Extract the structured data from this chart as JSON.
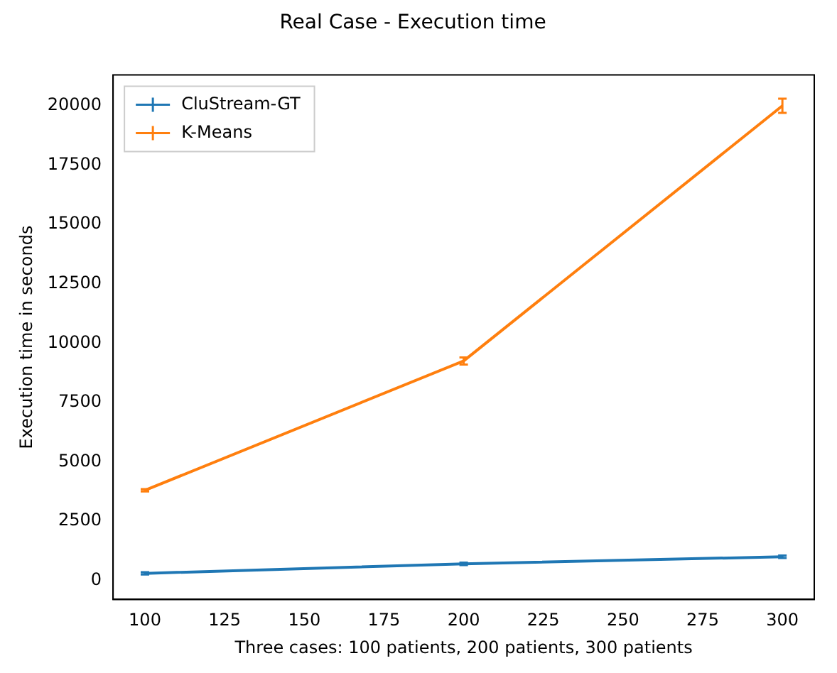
{
  "chart_data": {
    "type": "line",
    "title": "Real Case - Execution time",
    "xlabel": "Three cases: 100 patients, 200 patients, 300 patients",
    "ylabel": "Execution time in seconds",
    "x": [
      100,
      200,
      300
    ],
    "series": [
      {
        "name": "CluStream-GT",
        "color": "#1f77b4",
        "values": [
          300,
          700,
          1000
        ],
        "errors": [
          50,
          50,
          50
        ]
      },
      {
        "name": "K-Means",
        "color": "#ff7f0e",
        "values": [
          3800,
          9250,
          20000
        ],
        "errors": [
          50,
          150,
          300
        ]
      }
    ],
    "xlim": [
      90,
      310
    ],
    "xticks": [
      100,
      125,
      150,
      175,
      200,
      225,
      250,
      275,
      300
    ],
    "ylim": [
      -800,
      21300
    ],
    "yticks": [
      0,
      2500,
      5000,
      7500,
      10000,
      12500,
      15000,
      17500,
      20000
    ],
    "legend": "top left",
    "grid": false,
    "line_style": "solid"
  }
}
